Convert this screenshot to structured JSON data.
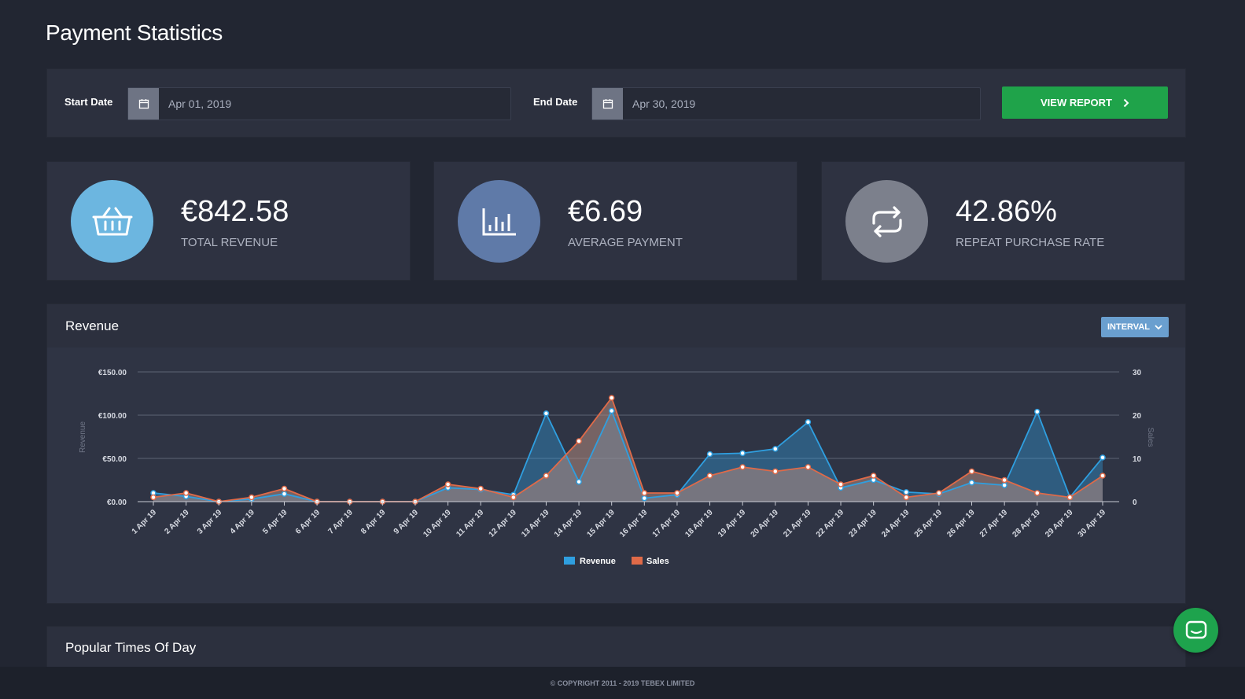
{
  "page": {
    "title": "Payment Statistics"
  },
  "filters": {
    "start_label": "Start Date",
    "start_value": "Apr 01, 2019",
    "end_label": "End Date",
    "end_value": "Apr 30, 2019",
    "view_report_label": "VIEW REPORT"
  },
  "stats": [
    {
      "value": "€842.58",
      "label": "TOTAL REVENUE",
      "icon": "basket-icon",
      "color": "#6cb6e0"
    },
    {
      "value": "€6.69",
      "label": "AVERAGE PAYMENT",
      "icon": "bar-chart-icon",
      "color": "#5f7aa8"
    },
    {
      "value": "42.86%",
      "label": "REPEAT PURCHASE RATE",
      "icon": "repeat-icon",
      "color": "#7c808c"
    }
  ],
  "revenue": {
    "title": "Revenue",
    "interval_label": "INTERVAL"
  },
  "chart_data": {
    "type": "area",
    "categories": [
      "1 Apr 19",
      "2 Apr 19",
      "3 Apr 19",
      "4 Apr 19",
      "5 Apr 19",
      "6 Apr 19",
      "7 Apr 19",
      "8 Apr 19",
      "9 Apr 19",
      "10 Apr 19",
      "11 Apr 19",
      "12 Apr 19",
      "13 Apr 19",
      "14 Apr 19",
      "15 Apr 19",
      "16 Apr 19",
      "17 Apr 19",
      "18 Apr 19",
      "19 Apr 19",
      "20 Apr 19",
      "21 Apr 19",
      "22 Apr 19",
      "23 Apr 19",
      "24 Apr 19",
      "25 Apr 19",
      "26 Apr 19",
      "27 Apr 19",
      "28 Apr 19",
      "29 Apr 19",
      "30 Apr 19"
    ],
    "series": [
      {
        "name": "Revenue",
        "axis": "left",
        "color": "#2f9fe0",
        "values": [
          10,
          6,
          0,
          3,
          9,
          0,
          0,
          0,
          0,
          16,
          14,
          8,
          102,
          23,
          105,
          4,
          8,
          55,
          56,
          61,
          92,
          16,
          25,
          11,
          9,
          22,
          19,
          104,
          5,
          51
        ]
      },
      {
        "name": "Sales",
        "axis": "right",
        "color": "#e06a48",
        "values": [
          1,
          2,
          0,
          1,
          3,
          0,
          0,
          0,
          0,
          4,
          3,
          1,
          6,
          14,
          24,
          2,
          2,
          6,
          8,
          7,
          8,
          4,
          6,
          1,
          2,
          7,
          5,
          2,
          1,
          6
        ]
      }
    ],
    "ylabel": "Revenue",
    "y2label": "Sales",
    "y_ticks": [
      "€0.00",
      "€50.00",
      "€100.00",
      "€150.00"
    ],
    "y2_ticks": [
      "0",
      "10",
      "20",
      "30"
    ],
    "ylim": [
      0,
      150
    ],
    "y2lim": [
      0,
      30
    ],
    "grid": true,
    "legend": "bottom-center"
  },
  "popular": {
    "title": "Popular Times Of Day"
  },
  "footer": {
    "text": "© COPYRIGHT 2011 - 2019 TEBEX LIMITED"
  }
}
